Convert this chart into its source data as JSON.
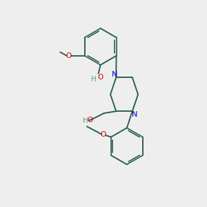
{
  "bg_color": "#eeeeee",
  "bond_color": "#2a6050",
  "nitrogen_color": "#0000cc",
  "oxygen_color": "#cc0000",
  "hydrogen_color": "#5a9988",
  "figsize": [
    3.0,
    3.0
  ],
  "dpi": 100,
  "xlim": [
    0,
    10
  ],
  "ylim": [
    0,
    10
  ]
}
